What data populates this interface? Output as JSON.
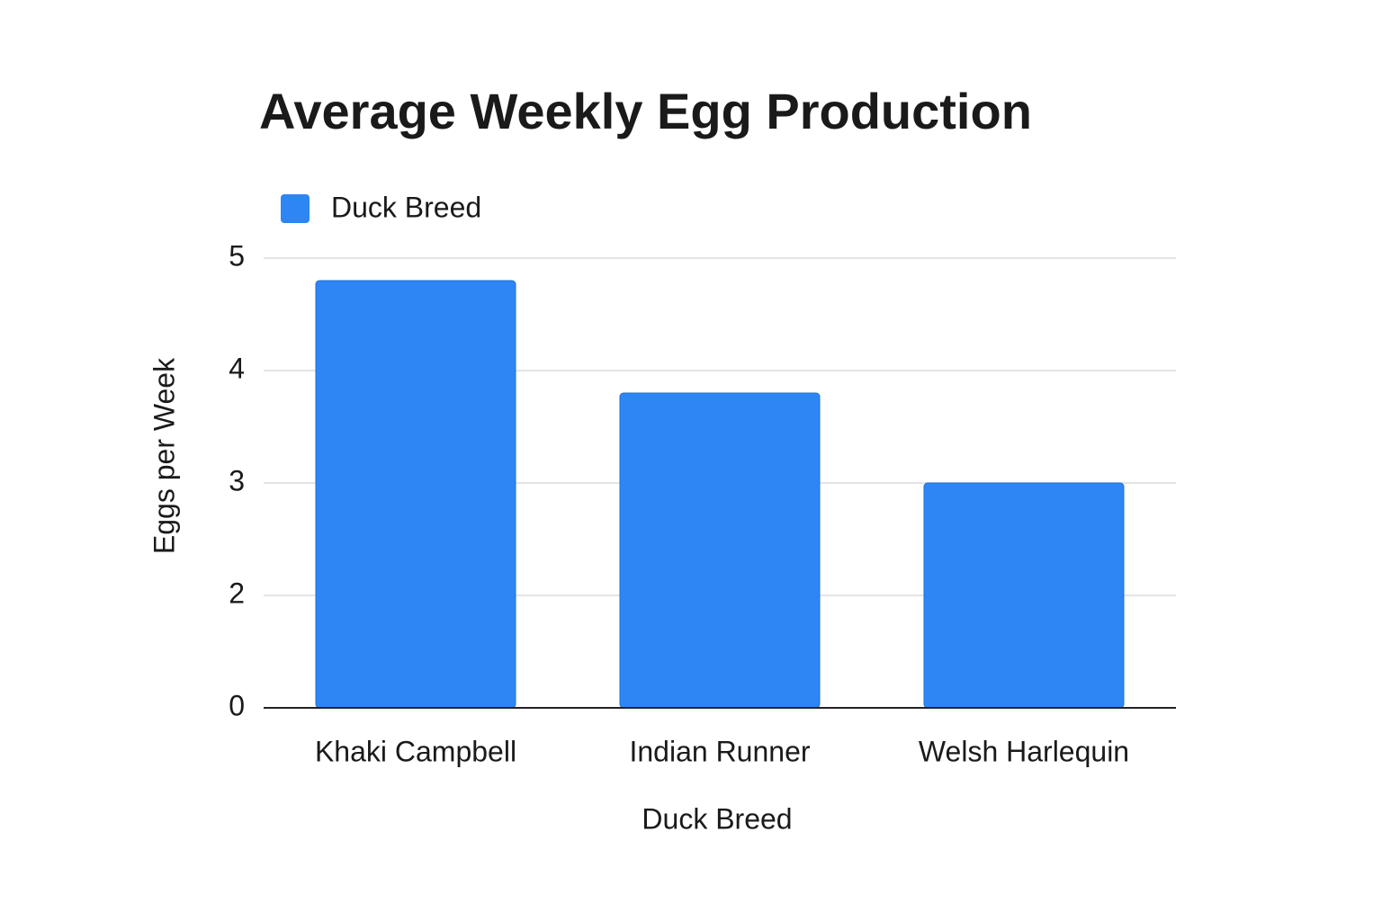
{
  "chart_data": {
    "type": "bar",
    "title": "Average Weekly Egg Production",
    "x_label": "Duck Breed",
    "y_label": "Eggs per Week",
    "categories": [
      "Khaki Campbell",
      "Indian Runner",
      "Welsh Harlequin"
    ],
    "series": [
      {
        "name": "Duck Breed",
        "color": "#2e86f5",
        "values": [
          4.8,
          3.8,
          3.0
        ]
      }
    ],
    "ylim": [
      0,
      5
    ],
    "yticks": [
      0,
      2,
      3,
      4,
      5
    ],
    "grid": true,
    "legend": "top-left"
  }
}
